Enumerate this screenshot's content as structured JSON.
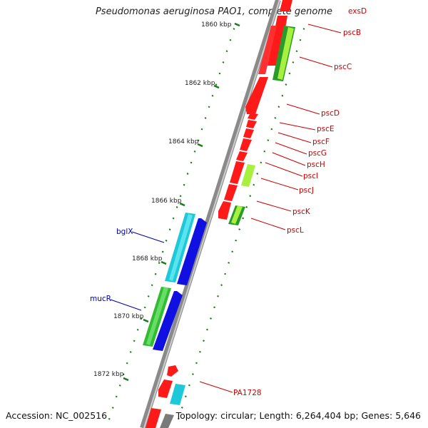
{
  "title": "Pseudomonas aeruginosa PAO1, complete genome",
  "accession": {
    "label": "Accession:",
    "value": "NC_002516"
  },
  "topology": {
    "label": "Topology:",
    "value": "circular"
  },
  "length": {
    "label": "Length:",
    "value": "6,264,404 bp"
  },
  "genes": {
    "label": "Genes:",
    "value": "5,646"
  },
  "tick_labels": [
    "1860 kbp",
    "1862 kbp",
    "1864 kbp",
    "1866 kbp",
    "1868 kbp",
    "1870 kbp",
    "1872 kbp"
  ],
  "gene_labels_right": [
    "exsD",
    "pscB",
    "pscC",
    "pscD",
    "pscE",
    "pscF",
    "pscG",
    "pscH",
    "pscI",
    "pscJ",
    "pscK",
    "pscL",
    "PA1728"
  ],
  "gene_labels_left": [
    "bglX",
    "mucR"
  ],
  "colors": {
    "backbone": "#8a8a8a",
    "tick": "#1a7a1a",
    "red_gene": "#ff1a1a",
    "blue_gene": "#1010e0",
    "cyan_gene": "#1ec8d8",
    "green_gene": "#33bb33",
    "lime_gene": "#aaf033",
    "gray_gene": "#7a7a7a",
    "label_red": "#cc0000",
    "label_blue": "#0000aa"
  }
}
